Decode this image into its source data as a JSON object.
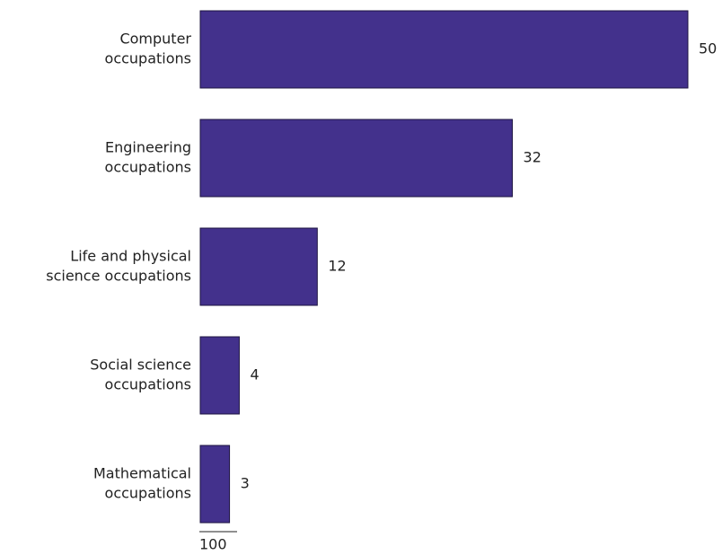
{
  "chart_data": {
    "type": "bar",
    "orientation": "horizontal",
    "categories": [
      [
        "Computer",
        "occupations"
      ],
      [
        "Engineering",
        "occupations"
      ],
      [
        "Life and physical",
        "science occupations"
      ],
      [
        "Social science",
        "occupations"
      ],
      [
        "Mathematical",
        "occupations"
      ]
    ],
    "values": [
      50,
      32,
      12,
      4,
      3
    ],
    "color": "#43318c",
    "total": 100
  }
}
